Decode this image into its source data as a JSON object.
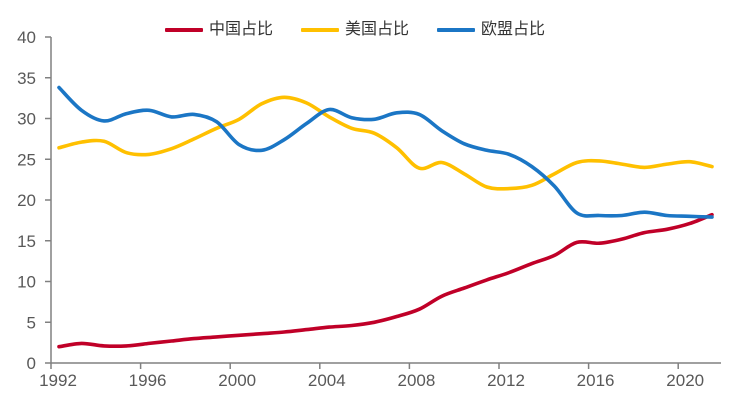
{
  "chart_data": {
    "type": "line",
    "title": "",
    "x": [
      1992,
      1993,
      1994,
      1995,
      1996,
      1997,
      1998,
      1999,
      2000,
      2001,
      2002,
      2003,
      2004,
      2005,
      2006,
      2007,
      2008,
      2009,
      2010,
      2011,
      2012,
      2013,
      2014,
      2015,
      2016,
      2017,
      2018,
      2019,
      2020,
      2021
    ],
    "xticks": [
      1992,
      1996,
      2000,
      2004,
      2008,
      2012,
      2016,
      2020
    ],
    "yticks": [
      0,
      5,
      10,
      15,
      20,
      25,
      30,
      35,
      40
    ],
    "ylim": [
      0,
      40
    ],
    "grid": false,
    "legend_position": "top",
    "series": [
      {
        "key": "china",
        "name": "中国占比",
        "color": "#C00028",
        "values": [
          2.0,
          2.4,
          2.1,
          2.1,
          2.4,
          2.7,
          3.0,
          3.2,
          3.4,
          3.6,
          3.8,
          4.1,
          4.4,
          4.6,
          5.0,
          5.7,
          6.6,
          8.2,
          9.2,
          10.2,
          11.1,
          12.2,
          13.2,
          14.8,
          14.7,
          15.2,
          16.0,
          16.4,
          17.1,
          18.2
        ]
      },
      {
        "key": "usa",
        "name": "美国占比",
        "color": "#FFC000",
        "values": [
          26.4,
          27.1,
          27.2,
          25.8,
          25.6,
          26.3,
          27.5,
          28.8,
          29.9,
          31.8,
          32.6,
          31.9,
          30.2,
          28.8,
          28.2,
          26.4,
          23.9,
          24.6,
          23.2,
          21.6,
          21.4,
          21.8,
          23.2,
          24.6,
          24.8,
          24.4,
          24.0,
          24.4,
          24.7,
          24.1
        ]
      },
      {
        "key": "eu",
        "name": "欧盟占比",
        "color": "#1B76C5",
        "values": [
          33.8,
          31.0,
          29.7,
          30.6,
          31.0,
          30.2,
          30.5,
          29.6,
          26.8,
          26.1,
          27.4,
          29.4,
          31.1,
          30.1,
          29.9,
          30.7,
          30.5,
          28.5,
          26.9,
          26.1,
          25.6,
          24.1,
          21.7,
          18.4,
          18.1,
          18.1,
          18.5,
          18.1,
          18.0,
          17.9
        ]
      }
    ],
    "axis_color": "#808080",
    "label_color": "#595959",
    "legend_text_color": "#333333"
  }
}
